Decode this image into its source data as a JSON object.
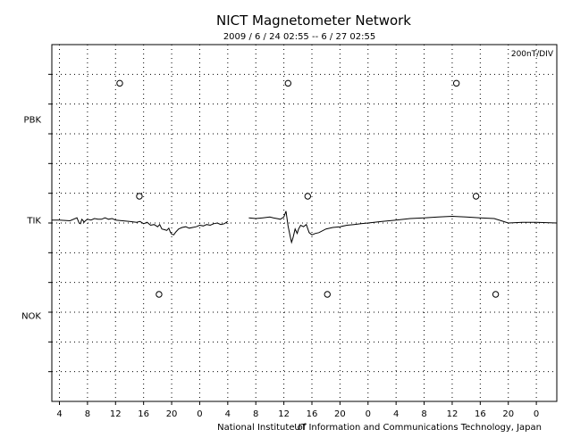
{
  "chart_data": {
    "type": "line",
    "title": "NICT Magnetometer Network",
    "subtitle": "2009 / 6 / 24   02:55 --  6 / 27   02:55",
    "scale_label": "200nT/DIV",
    "xlabel": "UT",
    "footer": "National Institute of Information and Communications Technology, Japan",
    "x_unit": "hours since 2009-06-24 00:00 UT",
    "xlim": [
      2.9167,
      74.9167
    ],
    "x_tick_labels": [
      "4",
      "8",
      "12",
      "16",
      "20",
      "0",
      "4",
      "8",
      "12",
      "16",
      "20",
      "0",
      "4",
      "8",
      "12",
      "16",
      "20",
      "0"
    ],
    "x_tick_hours": [
      4,
      8,
      12,
      16,
      20,
      24,
      28,
      32,
      36,
      40,
      44,
      48,
      52,
      56,
      60,
      64,
      68,
      72
    ],
    "grid": true,
    "stations": [
      "PBK",
      "TIK",
      "NOK"
    ],
    "local_midnight_markers": {
      "PBK": [
        12.6,
        36.6,
        60.6
      ],
      "TIK": [
        15.4,
        39.4,
        63.4
      ],
      "NOK": [
        18.2,
        42.2,
        66.2
      ]
    },
    "series": [
      {
        "name": "TIK",
        "x": [
          2.92,
          4.0,
          5.5,
          6.5,
          6.8,
          7.0,
          7.2,
          7.4,
          7.5,
          7.7,
          8.0,
          8.5,
          9.0,
          9.5,
          10.0,
          10.5,
          11.0,
          11.5,
          12.0,
          13.0,
          14.0,
          15.0,
          15.5,
          16.0,
          16.5,
          17.0,
          17.5,
          18.0,
          18.3,
          18.6,
          19.0,
          19.3,
          19.6,
          19.8,
          20.0,
          20.3,
          20.6,
          21.0,
          21.5,
          22.0,
          22.5,
          23.0,
          23.5,
          24.0,
          24.5,
          25.0,
          25.5,
          26.0,
          26.5,
          27.0,
          27.5,
          28.0
        ],
        "y": [
          0,
          0,
          -5,
          15,
          -20,
          -25,
          5,
          -5,
          -15,
          -5,
          5,
          0,
          10,
          5,
          5,
          15,
          5,
          10,
          0,
          -5,
          -10,
          -15,
          -10,
          -25,
          -15,
          -35,
          -30,
          -45,
          -30,
          -60,
          -65,
          -70,
          -55,
          -80,
          -95,
          -100,
          -80,
          -60,
          -50,
          -45,
          -55,
          -50,
          -45,
          -35,
          -40,
          -30,
          -35,
          -25,
          -20,
          -30,
          -25,
          -10
        ]
      },
      {
        "name": "TIK",
        "x": [
          31.0,
          32.0,
          33.0,
          34.0,
          34.5,
          35.0,
          35.5,
          36.0,
          36.3,
          36.6,
          36.9,
          37.1,
          37.3,
          37.6,
          37.9,
          38.1,
          38.4,
          38.8,
          39.2,
          39.6,
          40.0,
          40.5,
          41.0,
          42.0,
          43.0,
          44.0,
          45.0,
          46.0,
          47.0,
          48.0,
          50.0,
          52.0,
          54.0,
          56.0,
          58.0,
          60.0,
          62.0,
          64.0,
          66.0,
          67.0,
          68.0,
          70.0,
          72.0,
          74.92
        ],
        "y": [
          15,
          10,
          15,
          20,
          15,
          10,
          5,
          20,
          60,
          -40,
          -110,
          -150,
          -120,
          -60,
          -90,
          -60,
          -35,
          -45,
          -30,
          -85,
          -100,
          -90,
          -85,
          -60,
          -50,
          -45,
          -35,
          -30,
          -25,
          -20,
          -10,
          0,
          10,
          15,
          20,
          25,
          20,
          15,
          10,
          -5,
          -20,
          -15,
          -15,
          -20
        ]
      }
    ]
  }
}
